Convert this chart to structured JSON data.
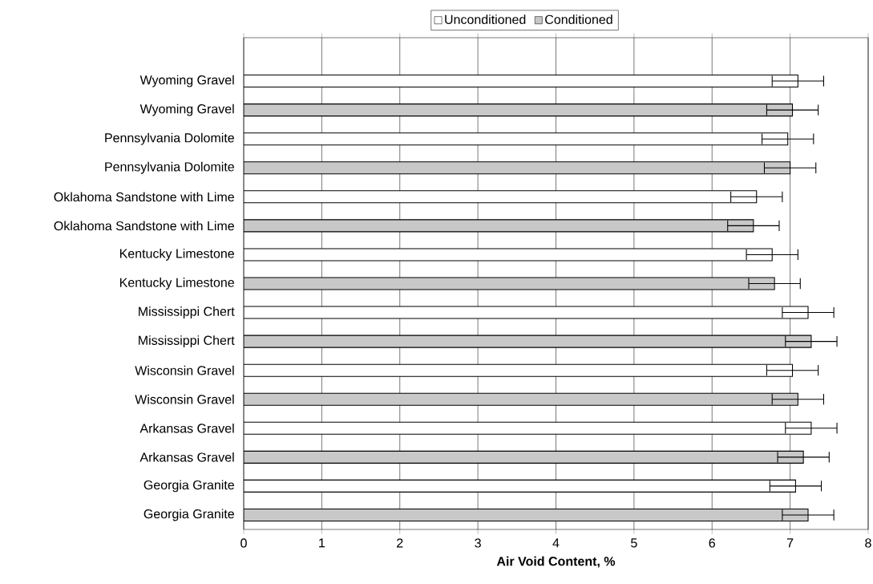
{
  "chart_data": {
    "type": "bar",
    "orientation": "horizontal",
    "xlabel": "Air Void Content, %",
    "categories": [
      "Wyoming Gravel",
      "Wyoming Gravel",
      "Pennsylvania Dolomite",
      "Pennsylvania Dolomite",
      "Oklahoma Sandstone with Lime",
      "Oklahoma Sandstone with Lime",
      "Kentucky Limestone",
      "Kentucky Limestone",
      "Mississippi Chert",
      "Mississippi Chert",
      "Wisconsin Gravel",
      "Wisconsin Gravel",
      "Arkansas Gravel",
      "Arkansas Gravel",
      "Georgia Granite",
      "Georgia Granite"
    ],
    "series": [
      {
        "name": "Unconditioned",
        "color": "#ffffff",
        "values": [
          7.1,
          null,
          6.97,
          null,
          6.57,
          null,
          6.77,
          null,
          7.23,
          null,
          7.03,
          null,
          7.27,
          null,
          7.07,
          null
        ],
        "errors": [
          0.33,
          null,
          0.33,
          null,
          0.33,
          null,
          0.33,
          null,
          0.33,
          null,
          0.33,
          null,
          0.33,
          null,
          0.33,
          null
        ]
      },
      {
        "name": "Conditioned",
        "color": "#c8c8c8",
        "values": [
          null,
          7.03,
          null,
          7.0,
          null,
          6.53,
          null,
          6.8,
          null,
          7.27,
          null,
          7.1,
          null,
          7.17,
          null,
          7.23
        ],
        "errors": [
          null,
          0.33,
          null,
          0.33,
          null,
          0.33,
          null,
          0.33,
          null,
          0.33,
          null,
          0.33,
          null,
          0.33,
          null,
          0.33
        ]
      }
    ],
    "xlim": [
      0,
      8
    ],
    "xticks": [
      0,
      1,
      2,
      3,
      4,
      5,
      6,
      7,
      8
    ],
    "grid": "x",
    "legend": "top"
  }
}
